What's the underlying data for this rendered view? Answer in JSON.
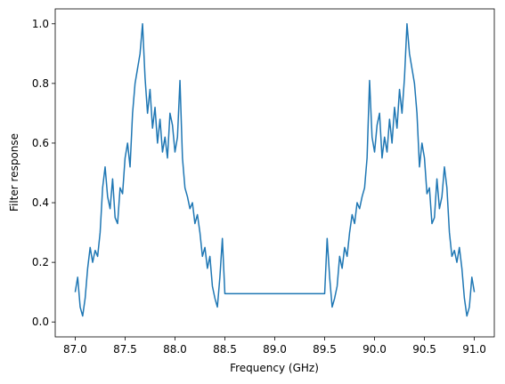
{
  "chart_data": {
    "type": "line",
    "xlabel": "Frequency (GHz)",
    "ylabel": "Filter response",
    "color": "#1f77b4",
    "x": [
      87.0,
      87.025,
      87.05,
      87.075,
      87.1,
      87.125,
      87.15,
      87.175,
      87.2,
      87.225,
      87.25,
      87.275,
      87.3,
      87.325,
      87.35,
      87.375,
      87.4,
      87.425,
      87.45,
      87.475,
      87.5,
      87.525,
      87.55,
      87.575,
      87.6,
      87.625,
      87.65,
      87.675,
      87.7,
      87.725,
      87.75,
      87.775,
      87.8,
      87.825,
      87.85,
      87.875,
      87.9,
      87.925,
      87.95,
      87.975,
      88.0,
      88.025,
      88.05,
      88.075,
      88.1,
      88.125,
      88.15,
      88.175,
      88.2,
      88.225,
      88.25,
      88.275,
      88.3,
      88.325,
      88.35,
      88.375,
      88.4,
      88.425,
      88.45,
      88.475,
      88.5,
      89.5,
      89.525,
      89.55,
      89.575,
      89.6,
      89.625,
      89.65,
      89.675,
      89.7,
      89.725,
      89.75,
      89.775,
      89.8,
      89.825,
      89.85,
      89.875,
      89.9,
      89.925,
      89.95,
      89.975,
      90.0,
      90.025,
      90.05,
      90.075,
      90.1,
      90.125,
      90.15,
      90.175,
      90.2,
      90.225,
      90.25,
      90.275,
      90.3,
      90.325,
      90.35,
      90.375,
      90.4,
      90.425,
      90.45,
      90.475,
      90.5,
      90.525,
      90.55,
      90.575,
      90.6,
      90.625,
      90.65,
      90.675,
      90.7,
      90.725,
      90.75,
      90.775,
      90.8,
      90.825,
      90.85,
      90.875,
      90.9,
      90.925,
      90.95,
      90.975,
      91.0
    ],
    "values": [
      0.1,
      0.15,
      0.05,
      0.02,
      0.08,
      0.18,
      0.25,
      0.2,
      0.24,
      0.22,
      0.3,
      0.45,
      0.52,
      0.42,
      0.38,
      0.48,
      0.35,
      0.33,
      0.45,
      0.43,
      0.55,
      0.6,
      0.52,
      0.7,
      0.8,
      0.85,
      0.9,
      1.0,
      0.82,
      0.7,
      0.78,
      0.65,
      0.72,
      0.6,
      0.68,
      0.57,
      0.62,
      0.55,
      0.7,
      0.66,
      0.57,
      0.62,
      0.81,
      0.55,
      0.45,
      0.42,
      0.38,
      0.4,
      0.33,
      0.36,
      0.3,
      0.22,
      0.25,
      0.18,
      0.22,
      0.12,
      0.08,
      0.05,
      0.15,
      0.28,
      0.095,
      0.095,
      0.28,
      0.15,
      0.05,
      0.08,
      0.12,
      0.22,
      0.18,
      0.25,
      0.22,
      0.3,
      0.36,
      0.33,
      0.4,
      0.38,
      0.42,
      0.45,
      0.55,
      0.81,
      0.62,
      0.57,
      0.66,
      0.7,
      0.55,
      0.62,
      0.57,
      0.68,
      0.6,
      0.72,
      0.65,
      0.78,
      0.7,
      0.82,
      1.0,
      0.9,
      0.85,
      0.8,
      0.7,
      0.52,
      0.6,
      0.55,
      0.43,
      0.45,
      0.33,
      0.35,
      0.48,
      0.38,
      0.42,
      0.52,
      0.45,
      0.3,
      0.22,
      0.24,
      0.2,
      0.25,
      0.18,
      0.08,
      0.02,
      0.05,
      0.15,
      0.1
    ],
    "xlim": [
      86.8,
      91.2
    ],
    "xticks": [
      {
        "value": 87.0,
        "label": "87.0"
      },
      87.5,
      {
        "value": 88.0,
        "label": "88.0"
      },
      88.5,
      {
        "value": 89.0,
        "label": "89.0"
      },
      89.5,
      {
        "value": 90.0,
        "label": "90.0"
      },
      90.5,
      {
        "value": 91.0,
        "label": "91.0"
      }
    ],
    "ylim": [
      -0.05,
      1.05
    ],
    "yticks": [
      {
        "value": 0.0,
        "label": "0.0"
      },
      0.2,
      0.4,
      0.6,
      0.8,
      {
        "value": 1.0,
        "label": "1.0"
      }
    ]
  }
}
